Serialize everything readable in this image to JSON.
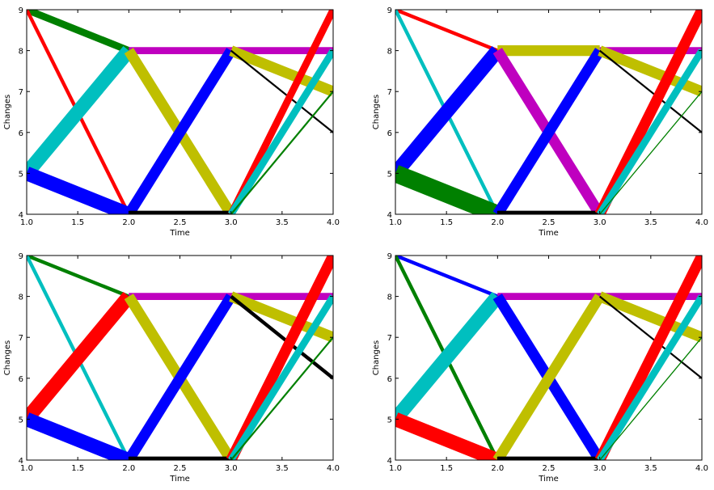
{
  "chart_data": [
    {
      "type": "line",
      "xlabel": "Time",
      "ylabel": "Changes",
      "xlim": [
        1.0,
        4.0
      ],
      "ylim": [
        4,
        9
      ],
      "xticks": [
        "1.0",
        "1.5",
        "2.0",
        "2.5",
        "3.0",
        "3.5",
        "4.0"
      ],
      "yticks": [
        "4",
        "5",
        "6",
        "7",
        "8",
        "9"
      ],
      "grid": false,
      "series": [
        {
          "color": "#008000",
          "weight": 2,
          "points": [
            [
              1,
              9
            ],
            [
              2,
              8
            ]
          ]
        },
        {
          "color": "#ff0000",
          "weight": 1,
          "points": [
            [
              1,
              9
            ],
            [
              2,
              4
            ]
          ]
        },
        {
          "color": "#00bfbf",
          "weight": 4,
          "points": [
            [
              1,
              5
            ],
            [
              2,
              8
            ]
          ]
        },
        {
          "color": "#0000ff",
          "weight": 4,
          "points": [
            [
              1,
              5
            ],
            [
              2,
              4
            ]
          ]
        },
        {
          "color": "#bf00bf",
          "weight": 2,
          "points": [
            [
              2,
              8
            ],
            [
              3,
              8
            ],
            [
              4,
              8
            ]
          ]
        },
        {
          "color": "#bfbf00",
          "weight": 3,
          "points": [
            [
              2,
              8
            ],
            [
              3,
              4
            ]
          ]
        },
        {
          "color": "#0000ff",
          "weight": 3,
          "points": [
            [
              2,
              4
            ],
            [
              3,
              8
            ]
          ]
        },
        {
          "color": "#000000",
          "weight": 2,
          "points": [
            [
              2,
              4
            ],
            [
              3,
              4
            ]
          ]
        },
        {
          "color": "#bfbf00",
          "weight": 3,
          "points": [
            [
              3,
              8
            ],
            [
              4,
              7
            ]
          ]
        },
        {
          "color": "#000000",
          "weight": 0.5,
          "points": [
            [
              3,
              8
            ],
            [
              4,
              6
            ]
          ]
        },
        {
          "color": "#ff0000",
          "weight": 2,
          "points": [
            [
              3,
              4
            ],
            [
              4,
              9
            ]
          ]
        },
        {
          "color": "#00bfbf",
          "weight": 2,
          "points": [
            [
              3,
              4
            ],
            [
              4,
              8
            ]
          ]
        },
        {
          "color": "#008000",
          "weight": 0.5,
          "points": [
            [
              3,
              4
            ],
            [
              4,
              7
            ]
          ]
        }
      ]
    },
    {
      "type": "line",
      "xlabel": "Time",
      "ylabel": "Changes",
      "xlim": [
        1.0,
        4.0
      ],
      "ylim": [
        4,
        9
      ],
      "xticks": [
        "1.0",
        "1.5",
        "2.0",
        "2.5",
        "3.0",
        "3.5",
        "4.0"
      ],
      "yticks": [
        "4",
        "5",
        "6",
        "7",
        "8",
        "9"
      ],
      "grid": false,
      "series": [
        {
          "color": "#ff0000",
          "weight": 1,
          "points": [
            [
              1,
              9
            ],
            [
              2,
              8
            ]
          ]
        },
        {
          "color": "#00bfbf",
          "weight": 1,
          "points": [
            [
              1,
              9
            ],
            [
              2,
              4
            ]
          ]
        },
        {
          "color": "#0000ff",
          "weight": 4,
          "points": [
            [
              1,
              5
            ],
            [
              2,
              8
            ]
          ]
        },
        {
          "color": "#008000",
          "weight": 5,
          "points": [
            [
              1,
              5
            ],
            [
              2,
              4
            ]
          ]
        },
        {
          "color": "#bfbf00",
          "weight": 3,
          "points": [
            [
              2,
              8
            ],
            [
              3,
              8
            ]
          ]
        },
        {
          "color": "#bf00bf",
          "weight": 3,
          "points": [
            [
              2,
              8
            ],
            [
              3,
              4
            ]
          ]
        },
        {
          "color": "#0000ff",
          "weight": 3,
          "points": [
            [
              2,
              4
            ],
            [
              3,
              8
            ]
          ]
        },
        {
          "color": "#000000",
          "weight": 2,
          "points": [
            [
              2,
              4
            ],
            [
              3,
              4
            ]
          ]
        },
        {
          "color": "#bf00bf",
          "weight": 2,
          "points": [
            [
              3,
              8
            ],
            [
              4,
              8
            ]
          ]
        },
        {
          "color": "#bfbf00",
          "weight": 3,
          "points": [
            [
              3,
              8
            ],
            [
              4,
              7
            ]
          ]
        },
        {
          "color": "#000000",
          "weight": 0.5,
          "points": [
            [
              3,
              8
            ],
            [
              4,
              6
            ]
          ]
        },
        {
          "color": "#ff0000",
          "weight": 3,
          "points": [
            [
              3,
              4
            ],
            [
              4,
              9
            ]
          ]
        },
        {
          "color": "#00bfbf",
          "weight": 2,
          "points": [
            [
              3,
              4
            ],
            [
              4,
              8
            ]
          ]
        },
        {
          "color": "#008000",
          "weight": 0.3,
          "points": [
            [
              3,
              4
            ],
            [
              4,
              7
            ]
          ]
        }
      ]
    },
    {
      "type": "line",
      "xlabel": "Time",
      "ylabel": "Changes",
      "xlim": [
        1.0,
        4.0
      ],
      "ylim": [
        4,
        9
      ],
      "xticks": [
        "1.0",
        "1.5",
        "2.0",
        "2.5",
        "3.0",
        "3.5",
        "4.0"
      ],
      "yticks": [
        "4",
        "5",
        "6",
        "7",
        "8",
        "9"
      ],
      "grid": false,
      "series": [
        {
          "color": "#008000",
          "weight": 1,
          "points": [
            [
              1,
              9
            ],
            [
              2,
              8
            ]
          ]
        },
        {
          "color": "#00bfbf",
          "weight": 1,
          "points": [
            [
              1,
              9
            ],
            [
              2,
              4
            ]
          ]
        },
        {
          "color": "#ff0000",
          "weight": 4,
          "points": [
            [
              1,
              5
            ],
            [
              2,
              8
            ]
          ]
        },
        {
          "color": "#0000ff",
          "weight": 4,
          "points": [
            [
              1,
              5
            ],
            [
              2,
              4
            ]
          ]
        },
        {
          "color": "#bf00bf",
          "weight": 2,
          "points": [
            [
              2,
              8
            ],
            [
              3,
              8
            ],
            [
              4,
              8
            ]
          ]
        },
        {
          "color": "#bfbf00",
          "weight": 3,
          "points": [
            [
              2,
              8
            ],
            [
              3,
              4
            ]
          ]
        },
        {
          "color": "#0000ff",
          "weight": 3,
          "points": [
            [
              2,
              4
            ],
            [
              3,
              8
            ]
          ]
        },
        {
          "color": "#000000",
          "weight": 2,
          "points": [
            [
              2,
              4
            ],
            [
              3,
              4
            ]
          ]
        },
        {
          "color": "#bfbf00",
          "weight": 3,
          "points": [
            [
              3,
              8
            ],
            [
              4,
              7
            ]
          ]
        },
        {
          "color": "#000000",
          "weight": 1,
          "points": [
            [
              3,
              8
            ],
            [
              4,
              6
            ]
          ]
        },
        {
          "color": "#ff0000",
          "weight": 3,
          "points": [
            [
              3,
              4
            ],
            [
              4,
              9
            ]
          ]
        },
        {
          "color": "#00bfbf",
          "weight": 2,
          "points": [
            [
              3,
              4
            ],
            [
              4,
              8
            ]
          ]
        },
        {
          "color": "#008000",
          "weight": 0.5,
          "points": [
            [
              3,
              4
            ],
            [
              4,
              7
            ]
          ]
        }
      ]
    },
    {
      "type": "line",
      "xlabel": "Time",
      "ylabel": "Changes",
      "xlim": [
        1.0,
        4.0
      ],
      "ylim": [
        4,
        9
      ],
      "xticks": [
        "1.0",
        "1.5",
        "2.0",
        "2.5",
        "3.0",
        "3.5",
        "4.0"
      ],
      "yticks": [
        "4",
        "5",
        "6",
        "7",
        "8",
        "9"
      ],
      "grid": false,
      "series": [
        {
          "color": "#0000ff",
          "weight": 1,
          "points": [
            [
              1,
              9
            ],
            [
              2,
              8
            ]
          ]
        },
        {
          "color": "#008000",
          "weight": 1,
          "points": [
            [
              1,
              9
            ],
            [
              2,
              4
            ]
          ]
        },
        {
          "color": "#00bfbf",
          "weight": 4,
          "points": [
            [
              1,
              5
            ],
            [
              2,
              8
            ]
          ]
        },
        {
          "color": "#ff0000",
          "weight": 4,
          "points": [
            [
              1,
              5
            ],
            [
              2,
              4
            ]
          ]
        },
        {
          "color": "#bf00bf",
          "weight": 2,
          "points": [
            [
              2,
              8
            ],
            [
              3,
              8
            ],
            [
              4,
              8
            ]
          ]
        },
        {
          "color": "#0000ff",
          "weight": 3,
          "points": [
            [
              2,
              8
            ],
            [
              3,
              4
            ]
          ]
        },
        {
          "color": "#bfbf00",
          "weight": 3,
          "points": [
            [
              2,
              4
            ],
            [
              3,
              8
            ]
          ]
        },
        {
          "color": "#000000",
          "weight": 2,
          "points": [
            [
              2,
              4
            ],
            [
              3,
              4
            ]
          ]
        },
        {
          "color": "#bfbf00",
          "weight": 3,
          "points": [
            [
              3,
              8
            ],
            [
              4,
              7
            ]
          ]
        },
        {
          "color": "#000000",
          "weight": 0.5,
          "points": [
            [
              3,
              8
            ],
            [
              4,
              6
            ]
          ]
        },
        {
          "color": "#ff0000",
          "weight": 3,
          "points": [
            [
              3,
              4
            ],
            [
              4,
              9
            ]
          ]
        },
        {
          "color": "#00bfbf",
          "weight": 2,
          "points": [
            [
              3,
              4
            ],
            [
              4,
              8
            ]
          ]
        },
        {
          "color": "#008000",
          "weight": 0.3,
          "points": [
            [
              3,
              4
            ],
            [
              4,
              7
            ]
          ]
        }
      ]
    }
  ]
}
